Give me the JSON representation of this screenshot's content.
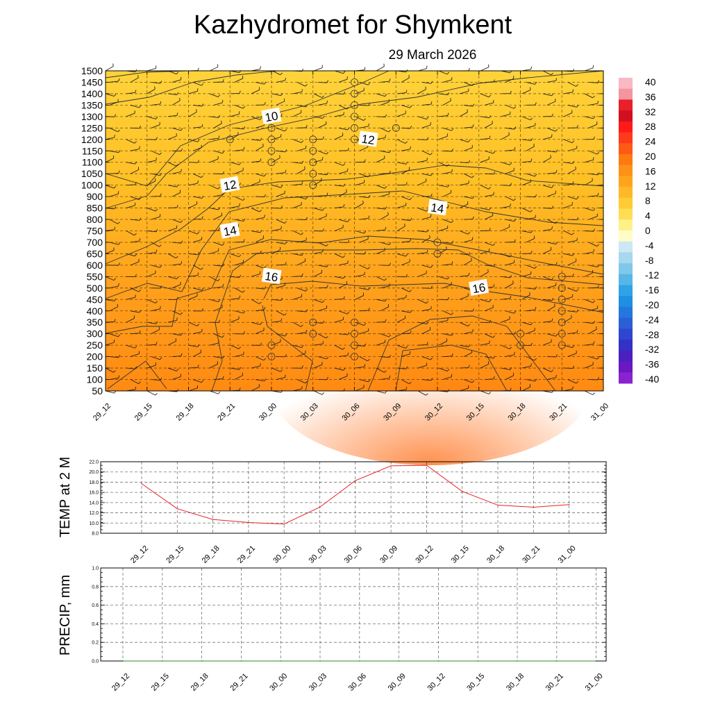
{
  "title": "Kazhydromet  for Shymkent",
  "subtitle": "29 March 2026",
  "chart_data": [
    {
      "type": "heatmap",
      "name": "vertical cross-section (temperature with wind barbs)",
      "x_categories": [
        "29_12",
        "29_15",
        "29_18",
        "29_21",
        "30_00",
        "30_03",
        "30_06",
        "30_09",
        "30_12",
        "30_15",
        "30_18",
        "30_21",
        "31_00"
      ],
      "y_ticks": [
        1500,
        1450,
        1400,
        1350,
        1300,
        1250,
        1200,
        1150,
        1100,
        1050,
        1000,
        900,
        850,
        800,
        750,
        700,
        650,
        600,
        550,
        500,
        450,
        400,
        350,
        300,
        250,
        200,
        150,
        100,
        50
      ],
      "contour_labels": [
        {
          "text": "10",
          "x": "30_00",
          "y": 1300
        },
        {
          "text": "12",
          "x": "30_09",
          "y": 1200
        },
        {
          "text": "12",
          "x": "29_21",
          "y": 1000
        },
        {
          "text": "14",
          "x": "30_12",
          "y": 850
        },
        {
          "text": "14",
          "x": "29_21",
          "y": 750
        },
        {
          "text": "16",
          "x": "30_00",
          "y": 550
        },
        {
          "text": "16",
          "x": "30_15",
          "y": 500
        }
      ],
      "colorbar_ticks": [
        "40",
        "36",
        "32",
        "28",
        "24",
        "20",
        "16",
        "12",
        "8",
        "4",
        "0",
        "-4",
        "-8",
        "-12",
        "-16",
        "-20",
        "-24",
        "-28",
        "-32",
        "-36",
        "-40"
      ]
    },
    {
      "type": "line",
      "ylabel": "TEMP at 2 M",
      "categories": [
        "29_12",
        "29_15",
        "29_18",
        "29_21",
        "30_00",
        "30_03",
        "30_06",
        "30_09",
        "30_12",
        "30_15",
        "30_18",
        "30_21",
        "31_00"
      ],
      "values": [
        17.7,
        12.8,
        10.7,
        10.1,
        9.8,
        13.1,
        18.3,
        21.2,
        21.3,
        16.2,
        13.5,
        13.1,
        13.6
      ],
      "ylim": [
        8.0,
        22.0
      ],
      "yticks": [
        "22.0",
        "20.0",
        "18.0",
        "16.0",
        "14.0",
        "12.0",
        "10.0",
        "8.0"
      ],
      "line_color": "#e8202a"
    },
    {
      "type": "line",
      "ylabel": "PRECIP, mm",
      "categories": [
        "29_12",
        "29_15",
        "29_18",
        "29_21",
        "30_00",
        "30_03",
        "30_06",
        "30_09",
        "30_12",
        "30_15",
        "30_18",
        "30_21",
        "31_00"
      ],
      "values": [
        0,
        0,
        0,
        0,
        0,
        0,
        0,
        0,
        0,
        0,
        0,
        0,
        0
      ],
      "ylim": [
        0.0,
        1.0
      ],
      "yticks": [
        "1.0",
        "0.8",
        "0.6",
        "0.4",
        "0.2",
        "0.0"
      ],
      "line_color": "#2a8a2a"
    }
  ]
}
